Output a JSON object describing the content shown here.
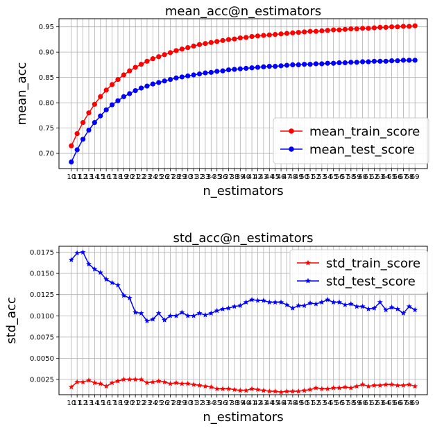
{
  "chart_data": [
    {
      "type": "line",
      "title": "mean_acc@n_estimators",
      "xlabel": "n_estimators",
      "ylabel": "mean_acc",
      "x": [
        10,
        11,
        12,
        13,
        14,
        15,
        16,
        17,
        18,
        19,
        20,
        21,
        22,
        23,
        24,
        25,
        26,
        27,
        28,
        29,
        30,
        31,
        32,
        33,
        34,
        35,
        36,
        37,
        38,
        39,
        40,
        41,
        42,
        43,
        44,
        45,
        46,
        47,
        48,
        49,
        50,
        51,
        52,
        53,
        54,
        55,
        56,
        57,
        58,
        59,
        60,
        61,
        62,
        63,
        64,
        65,
        66,
        67,
        68,
        69
      ],
      "ylim": [
        0.67,
        0.966
      ],
      "yticks": [
        0.7,
        0.75,
        0.8,
        0.85,
        0.9,
        0.95
      ],
      "ytick_labels": [
        "0.70",
        "0.75",
        "0.80",
        "0.85",
        "0.90",
        "0.95"
      ],
      "grid": true,
      "legend": "lower-right",
      "series": [
        {
          "name": "mean_train_score",
          "color": "#ff0000",
          "marker": "circle",
          "values": [
            0.715,
            0.739,
            0.761,
            0.78,
            0.797,
            0.812,
            0.825,
            0.836,
            0.846,
            0.855,
            0.863,
            0.87,
            0.876,
            0.882,
            0.887,
            0.891,
            0.895,
            0.899,
            0.903,
            0.906,
            0.909,
            0.912,
            0.915,
            0.917,
            0.919,
            0.921,
            0.923,
            0.925,
            0.926,
            0.928,
            0.929,
            0.931,
            0.932,
            0.933,
            0.934,
            0.935,
            0.936,
            0.937,
            0.938,
            0.939,
            0.94,
            0.941,
            0.941,
            0.942,
            0.943,
            0.944,
            0.944,
            0.945,
            0.946,
            0.946,
            0.947,
            0.947,
            0.948,
            0.949,
            0.949,
            0.95,
            0.95,
            0.951,
            0.951,
            0.952
          ]
        },
        {
          "name": "mean_test_score",
          "color": "#0000ff",
          "marker": "circle",
          "values": [
            0.683,
            0.707,
            0.728,
            0.746,
            0.761,
            0.774,
            0.786,
            0.796,
            0.804,
            0.812,
            0.818,
            0.824,
            0.829,
            0.833,
            0.837,
            0.84,
            0.843,
            0.846,
            0.849,
            0.851,
            0.853,
            0.855,
            0.857,
            0.859,
            0.86,
            0.862,
            0.863,
            0.865,
            0.866,
            0.867,
            0.868,
            0.869,
            0.87,
            0.871,
            0.872,
            0.872,
            0.873,
            0.874,
            0.875,
            0.875,
            0.876,
            0.876,
            0.877,
            0.877,
            0.878,
            0.878,
            0.879,
            0.879,
            0.88,
            0.88,
            0.881,
            0.881,
            0.882,
            0.882,
            0.882,
            0.883,
            0.883,
            0.884,
            0.884,
            0.884
          ]
        }
      ]
    },
    {
      "type": "line",
      "title": "std_acc@n_estimators",
      "xlabel": "n_estimators",
      "ylabel": "std_acc",
      "x": [
        10,
        11,
        12,
        13,
        14,
        15,
        16,
        17,
        18,
        19,
        20,
        21,
        22,
        23,
        24,
        25,
        26,
        27,
        28,
        29,
        30,
        31,
        32,
        33,
        34,
        35,
        36,
        37,
        38,
        39,
        40,
        41,
        42,
        43,
        44,
        45,
        46,
        47,
        48,
        49,
        50,
        51,
        52,
        53,
        54,
        55,
        56,
        57,
        58,
        59,
        60,
        61,
        62,
        63,
        64,
        65,
        66,
        67,
        68,
        69
      ],
      "ylim": [
        0.0007,
        0.0182
      ],
      "yticks": [
        0.0025,
        0.005,
        0.0075,
        0.01,
        0.0125,
        0.015,
        0.0175
      ],
      "ytick_labels": [
        "0.0025",
        "0.0050",
        "0.0075",
        "0.0100",
        "0.0125",
        "0.0150",
        "0.0175"
      ],
      "grid": true,
      "legend": "upper-right",
      "series": [
        {
          "name": "std_train_score",
          "color": "#ff0000",
          "marker": "star",
          "values": [
            0.0016,
            0.0022,
            0.0022,
            0.0024,
            0.0021,
            0.002,
            0.0017,
            0.0021,
            0.0023,
            0.0025,
            0.0025,
            0.0025,
            0.0025,
            0.0021,
            0.0022,
            0.0023,
            0.0022,
            0.002,
            0.0021,
            0.002,
            0.002,
            0.0019,
            0.0018,
            0.0017,
            0.0016,
            0.0014,
            0.0014,
            0.0014,
            0.0013,
            0.0012,
            0.0012,
            0.0014,
            0.0013,
            0.0012,
            0.0011,
            0.0011,
            0.001,
            0.0011,
            0.0011,
            0.0011,
            0.0012,
            0.0013,
            0.0015,
            0.0014,
            0.0014,
            0.0015,
            0.0015,
            0.0016,
            0.0015,
            0.0017,
            0.0019,
            0.0017,
            0.0018,
            0.0018,
            0.0019,
            0.0019,
            0.0018,
            0.0018,
            0.0019,
            0.0017
          ]
        },
        {
          "name": "std_test_score",
          "color": "#0000ff",
          "marker": "star",
          "values": [
            0.0166,
            0.0174,
            0.0175,
            0.0161,
            0.0155,
            0.0151,
            0.0143,
            0.0139,
            0.0136,
            0.0124,
            0.0121,
            0.0104,
            0.0103,
            0.0094,
            0.0096,
            0.0103,
            0.0095,
            0.01,
            0.01,
            0.0104,
            0.01,
            0.01,
            0.0103,
            0.0101,
            0.0103,
            0.0106,
            0.0108,
            0.0109,
            0.0111,
            0.0112,
            0.0116,
            0.0119,
            0.0118,
            0.0118,
            0.0116,
            0.0116,
            0.0116,
            0.0113,
            0.0109,
            0.0112,
            0.0112,
            0.0115,
            0.0114,
            0.0116,
            0.0119,
            0.0116,
            0.0116,
            0.0113,
            0.0114,
            0.0111,
            0.0111,
            0.0108,
            0.0109,
            0.0116,
            0.0107,
            0.011,
            0.0108,
            0.0103,
            0.0111,
            0.0107
          ]
        }
      ]
    }
  ]
}
